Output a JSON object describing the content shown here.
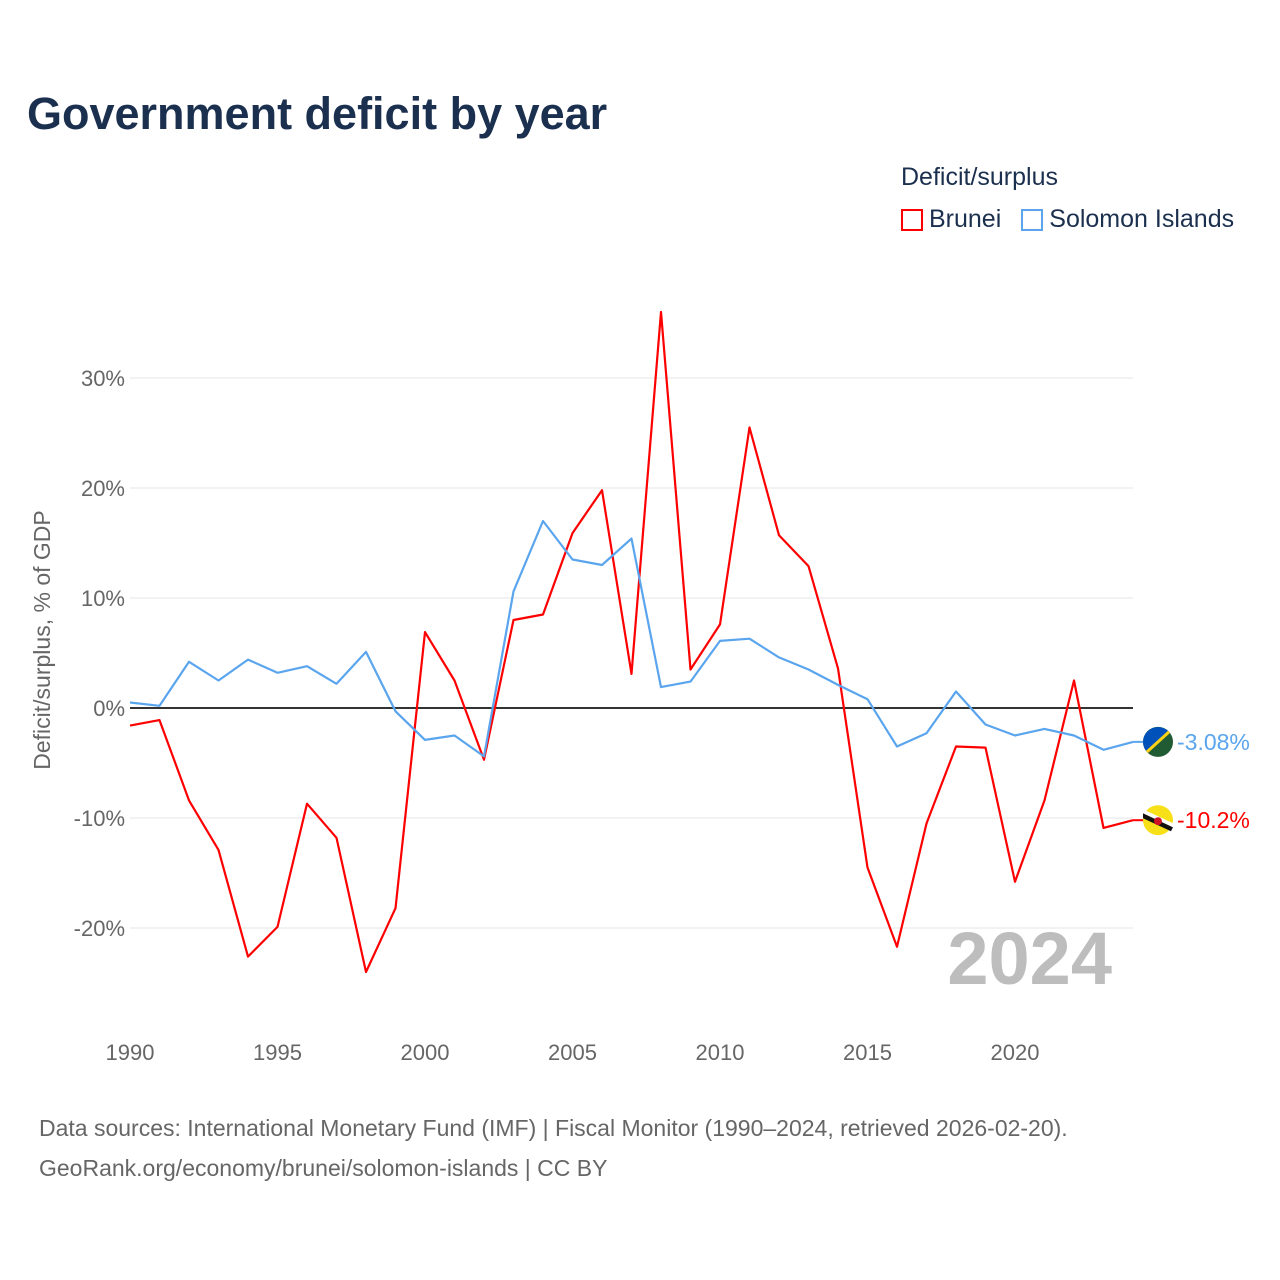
{
  "title": "Government deficit by year",
  "legend": {
    "title": "Deficit/surplus",
    "items": [
      {
        "name": "Brunei",
        "color": "#ff0000"
      },
      {
        "name": "Solomon Islands",
        "color": "#5aa5ee"
      }
    ]
  },
  "source": {
    "line1": "Data sources: International Monetary Fund (IMF) | Fiscal Monitor (1990–2024, retrieved 2026-02-20).",
    "line2": "GeoRank.org/economy/brunei/solomon-islands | CC BY"
  },
  "chart_data": {
    "type": "line",
    "title": "Government deficit by year",
    "xlabel": "",
    "ylabel": "Deficit/surplus, % of GDP",
    "xlim": [
      1990,
      2024
    ],
    "ylim": [
      -27,
      38
    ],
    "x_ticks": [
      1990,
      1995,
      2000,
      2005,
      2010,
      2015,
      2020
    ],
    "y_ticks": [
      -20,
      -10,
      0,
      10,
      20,
      30
    ],
    "y_tick_labels": [
      "-20%",
      "-10%",
      "0%",
      "10%",
      "20%",
      "30%"
    ],
    "x_tick_labels": [
      "1990",
      "1995",
      "2000",
      "2005",
      "2010",
      "2015",
      "2020"
    ],
    "year_watermark": "2024",
    "x": [
      1990,
      1991,
      1992,
      1993,
      1994,
      1995,
      1996,
      1997,
      1998,
      1999,
      2000,
      2001,
      2002,
      2003,
      2004,
      2005,
      2006,
      2007,
      2008,
      2009,
      2010,
      2011,
      2012,
      2013,
      2014,
      2015,
      2016,
      2017,
      2018,
      2019,
      2020,
      2021,
      2022,
      2023,
      2024
    ],
    "series": [
      {
        "name": "Brunei",
        "color": "#ff0000",
        "end_label": "-10.2%",
        "values": [
          -1.6,
          -1.1,
          -8.4,
          -12.9,
          -22.6,
          -19.9,
          -8.7,
          -11.8,
          -24.0,
          -18.2,
          6.9,
          2.5,
          -4.7,
          8.0,
          8.5,
          15.9,
          19.8,
          3.1,
          36.0,
          3.5,
          7.6,
          25.5,
          15.7,
          12.9,
          3.6,
          -14.5,
          -21.7,
          -10.5,
          -3.5,
          -3.6,
          -15.8,
          -8.4,
          2.5,
          -10.9,
          -10.2
        ]
      },
      {
        "name": "Solomon Islands",
        "color": "#5aa5ee",
        "end_label": "-3.08%",
        "values": [
          0.5,
          0.2,
          4.2,
          2.5,
          4.4,
          3.2,
          3.8,
          2.2,
          5.1,
          -0.3,
          -2.9,
          -2.5,
          -4.4,
          10.6,
          17.0,
          13.5,
          13.0,
          15.4,
          1.9,
          2.4,
          6.1,
          6.3,
          4.6,
          3.5,
          2.1,
          0.8,
          -3.5,
          -2.3,
          1.5,
          -1.5,
          -2.5,
          -1.9,
          -2.5,
          -3.8,
          -3.08
        ]
      }
    ]
  }
}
